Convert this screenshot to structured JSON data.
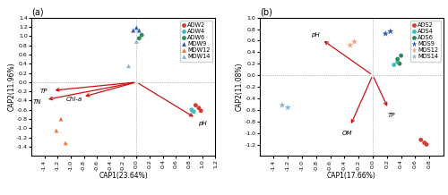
{
  "chart_data": [
    {
      "type": "scatter",
      "title": "(a)",
      "x_label": "CAP1(23.64%)",
      "y_label": "CAP2(11.96%)",
      "xlim": [
        -1.6,
        1.2
      ],
      "ylim": [
        -1.6,
        1.4
      ],
      "xticks": [
        -1.4,
        -1.2,
        {
          "value": -1,
          "label": "-1.0"
        },
        -0.8,
        -0.6,
        -0.4,
        -0.2,
        {
          "value": 0,
          "label": "0.0"
        },
        0.2,
        0.4,
        0.6,
        0.8,
        {
          "value": 1,
          "label": "1.0"
        },
        1.2
      ],
      "yticks": [
        -1.4,
        -1.2,
        {
          "value": -1,
          "label": "-1.0"
        },
        -0.8,
        -0.6,
        -0.4,
        -0.2,
        {
          "value": 0,
          "label": "0.0"
        },
        0.2,
        0.4,
        0.6,
        0.8,
        {
          "value": 1,
          "label": "1.0"
        },
        1.2,
        1.4
      ],
      "legend": "upper right",
      "hlines": [
        0
      ],
      "vlines": [
        0
      ],
      "series": [
        {
          "name": "ADW2",
          "color": "#d63b2f",
          "marker": "circle",
          "x": [
            0.9,
            0.95,
            0.98
          ],
          "values": [
            -0.5,
            -0.56,
            -0.62
          ]
        },
        {
          "name": "ADW4",
          "color": "#3cbfbf",
          "marker": "circle",
          "x": [
            0.84,
            0.87
          ],
          "values": [
            -0.6,
            -0.64
          ]
        },
        {
          "name": "ADW6",
          "color": "#2e8b57",
          "marker": "circle",
          "x": [
            0.04,
            0.08
          ],
          "values": [
            0.95,
            1.02
          ]
        },
        {
          "name": "MDW9",
          "color": "#2a5caa",
          "marker": "triangle",
          "x": [
            -0.05,
            0.0,
            0.04
          ],
          "values": [
            1.12,
            1.18,
            1.12
          ]
        },
        {
          "name": "MDW12",
          "color": "#f4733a",
          "marker": "triangle",
          "x": [
            -1.15,
            -1.22,
            -1.08
          ],
          "values": [
            -0.8,
            -1.05,
            -1.32
          ]
        },
        {
          "name": "MDW14",
          "color": "#8ab4d0",
          "marker": "triangle",
          "x": [
            -0.12,
            0.0
          ],
          "values": [
            0.35,
            0.88
          ]
        }
      ],
      "arrows": [
        {
          "start_x": 0,
          "start_y": 0,
          "x": -1.28,
          "y": -0.18,
          "label": "TP",
          "color": "#cc1111"
        },
        {
          "start_x": 0,
          "start_y": 0,
          "x": -1.38,
          "y": -0.38,
          "label": "TN",
          "color": "#cc1111"
        },
        {
          "start_x": 0,
          "start_y": 0,
          "x": -0.82,
          "y": -0.32,
          "label": "Chl-a",
          "color": "#cc1111"
        },
        {
          "start_x": 0,
          "start_y": 0,
          "x": 0.9,
          "y": -0.78,
          "label": "pH",
          "color": "#cc1111"
        }
      ]
    },
    {
      "type": "scatter",
      "title": "(b)",
      "x_label": "CAP1(17.66%)",
      "y_label": "CAP2(11.08%)",
      "xlim": [
        -1.6,
        1.0
      ],
      "ylim": [
        -1.4,
        1.0
      ],
      "xticks": [
        -1.4,
        -1.2,
        {
          "value": -1,
          "label": "-1.0"
        },
        -0.8,
        -0.6,
        -0.4,
        -0.2,
        {
          "value": 0,
          "label": "0.0"
        },
        0.2,
        0.4,
        0.6,
        0.8
      ],
      "yticks": [
        -1.2,
        {
          "value": -1,
          "label": "-1.0"
        },
        -0.8,
        -0.6,
        -0.4,
        -0.2,
        {
          "value": 0,
          "label": "0.0"
        },
        0.2,
        0.4,
        0.6,
        0.8,
        {
          "value": 1,
          "label": "1.0"
        }
      ],
      "legend": "upper right",
      "hlines": [
        0
      ],
      "vlines": [
        0
      ],
      "series": [
        {
          "name": "ADS2",
          "color": "#d63b2f",
          "marker": "circle",
          "x": [
            0.68,
            0.73,
            0.76
          ],
          "values": [
            -1.12,
            -1.17,
            -1.2
          ]
        },
        {
          "name": "ADS4",
          "color": "#3cbfbf",
          "marker": "circle",
          "x": [
            0.3,
            0.35
          ],
          "values": [
            0.18,
            0.23
          ]
        },
        {
          "name": "ADS6",
          "color": "#2e8b57",
          "marker": "circle",
          "x": [
            0.35,
            0.4,
            0.38
          ],
          "values": [
            0.28,
            0.34,
            0.2
          ]
        },
        {
          "name": "MDS9",
          "color": "#2a5caa",
          "marker": "star",
          "x": [
            0.18,
            0.25
          ],
          "values": [
            0.72,
            0.76
          ]
        },
        {
          "name": "MDS12",
          "color": "#f4a07a",
          "marker": "star",
          "x": [
            -0.32,
            -0.26
          ],
          "values": [
            0.52,
            0.58
          ]
        },
        {
          "name": "MDS14",
          "color": "#8ab4d0",
          "marker": "star",
          "x": [
            -1.28,
            -1.2
          ],
          "values": [
            -0.52,
            -0.56
          ]
        }
      ],
      "arrows": [
        {
          "start_x": 0,
          "start_y": 0,
          "x": -0.72,
          "y": 0.62,
          "label": "pH",
          "color": "#cc1111"
        },
        {
          "start_x": 0,
          "start_y": 0,
          "x": 0.22,
          "y": -0.58,
          "label": "TP",
          "color": "#cc1111"
        },
        {
          "start_x": 0,
          "start_y": 0,
          "x": -0.32,
          "y": -0.88,
          "label": "OM",
          "color": "#cc1111"
        }
      ]
    }
  ]
}
